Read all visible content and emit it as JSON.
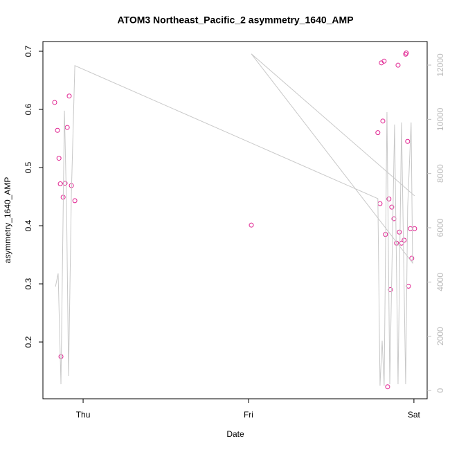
{
  "chart_data": {
    "type": "scatter",
    "title": "ATOM3 Northeast_Pacific_2 asymmetry_1640_AMP",
    "x_label": "Date",
    "y_label": "asymmetry_1640_AMP",
    "xlim": [
      -0.243,
      2.08
    ],
    "xticks": [
      {
        "value": 0,
        "label": "Thu"
      },
      {
        "value": 1,
        "label": "Fri"
      },
      {
        "value": 2,
        "label": "Sat"
      }
    ],
    "ylim": [
      0.1024,
      0.7167
    ],
    "yticks": [
      0.2,
      0.3,
      0.4,
      0.5,
      0.6,
      0.7
    ],
    "y2lim": [
      -306,
      12868
    ],
    "y2ticks": [
      0,
      2000,
      4000,
      6000,
      8000,
      10000,
      12000
    ],
    "series": [
      {
        "type": "scatter",
        "color": "#e0208f",
        "x": [
          -0.172,
          -0.155,
          -0.146,
          -0.138,
          -0.134,
          -0.121,
          -0.109,
          -0.096,
          -0.084,
          -0.071,
          -0.05,
          1.017,
          1.782,
          1.795,
          1.803,
          1.812,
          1.82,
          1.828,
          1.841,
          1.849,
          1.858,
          1.866,
          1.879,
          1.895,
          1.904,
          1.912,
          1.925,
          1.941,
          1.95,
          1.954,
          1.962,
          1.967,
          1.979,
          1.987,
          2.004
        ],
        "values": [
          0.612,
          0.564,
          0.516,
          0.472,
          0.175,
          0.449,
          0.473,
          0.569,
          0.623,
          0.469,
          0.443,
          0.401,
          0.56,
          0.438,
          0.68,
          0.58,
          0.683,
          0.385,
          0.123,
          0.446,
          0.29,
          0.432,
          0.412,
          0.37,
          0.676,
          0.389,
          0.37,
          0.375,
          0.695,
          0.697,
          0.545,
          0.296,
          0.395,
          0.344,
          0.395
        ]
      },
      {
        "type": "line",
        "color": "#c8c8c8",
        "axis": "y2",
        "x": [
          -0.167,
          -0.151,
          -0.134,
          -0.113,
          -0.1,
          -0.088,
          -0.071,
          -0.05,
          1.782,
          1.795,
          1.808,
          1.82,
          1.837,
          1.854,
          1.883,
          1.904,
          1.925,
          1.95,
          1.962,
          1.983,
          1.992,
          1.017,
          2.004
        ],
        "values": [
          3831,
          4317,
          230,
          10319,
          6743,
          536,
          7254,
          11980,
          7075,
          179,
          1839,
          179,
          10268,
          230,
          9808,
          230,
          9885,
          230,
          6743,
          9885,
          4700,
          12414,
          7178
        ]
      }
    ]
  }
}
